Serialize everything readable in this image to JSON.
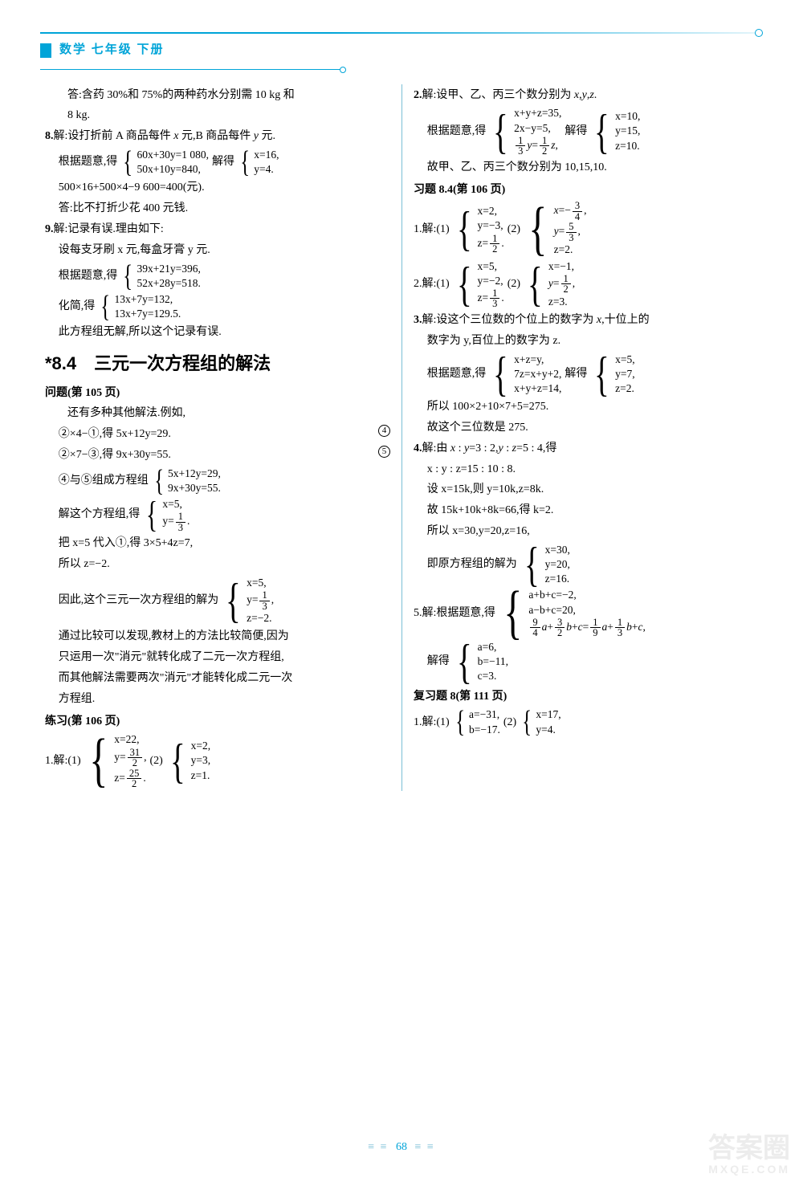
{
  "header": {
    "title": "数学 七年级 下册"
  },
  "page_number": "68",
  "watermark": {
    "big": "答案圈",
    "small": "MXQE.COM"
  },
  "left": {
    "l1": "答:含药 30%和 75%的两种药水分别需 10 kg 和",
    "l2": "8 kg.",
    "p8_a": "8.解:设打折前 A 商品每件 x 元,B 商品每件 y 元.",
    "p8_b_pre": "根据题意,得",
    "p8_sys1": [
      "60x+30y=1 080,",
      "50x+10y=840,"
    ],
    "p8_b_mid": "解得",
    "p8_sys2": [
      "x=16,",
      "y=4."
    ],
    "p8_c": "500×16+500×4−9 600=400(元).",
    "p8_d": "答:比不打折少花 400 元钱.",
    "p9_a": "9.解:记录有误.理由如下:",
    "p9_b": "设每支牙刷 x 元,每盒牙膏 y 元.",
    "p9_c_pre": "根据题意,得",
    "p9_sys1": [
      "39x+21y=396,",
      "52x+28y=518."
    ],
    "p9_d_pre": "化简,得",
    "p9_sys2": [
      "13x+7y=132,",
      "13x+7y=129.5."
    ],
    "p9_e": "此方程组无解,所以这个记录有误.",
    "sec_title": "*8.4　三元一次方程组的解法",
    "q_title": "问题(第 105 页)",
    "q_a": "还有多种其他解法.例如,",
    "q_b": "②×4−①,得 5x+12y=29.",
    "q_b_tag": "④",
    "q_c": "②×7−③,得 9x+30y=55.",
    "q_c_tag": "⑤",
    "q_d_pre": "④与⑤组成方程组",
    "q_sys1": [
      "5x+12y=29,",
      "9x+30y=55."
    ],
    "q_e_pre": "解这个方程组,得",
    "q_sys2_a": "x=5,",
    "q_sys2_b_pre": "y=",
    "q_f": "把 x=5 代入①,得 3×5+4z=7,",
    "q_g": "所以 z=−2.",
    "q_h_pre": "因此,这个三元一次方程组的解为",
    "q_sys3_a": "x=5,",
    "q_sys3_b_pre": "y=",
    "q_sys3_c": "z=−2.",
    "q_i": "通过比较可以发现,教材上的方法比较简便,因为",
    "q_j": "只运用一次\"消元\"就转化成了二元一次方程组,",
    "q_k": "而其他解法需要两次\"消元\"才能转化成二元一次",
    "q_l": "方程组.",
    "ex_title": "练习(第 106 页)",
    "ex1_pre": "1.解:(1)",
    "ex1_sys1_a": "x=22,",
    "ex1_sys1_b_pre": "y=",
    "ex1_sys1_c_pre": "z=",
    "ex1_mid": "(2)",
    "ex1_sys2": [
      "x=2,",
      "y=3,",
      "z=1."
    ]
  },
  "right": {
    "p2_a": "2.解:设甲、乙、丙三个数分别为 x,y,z.",
    "p2_b_pre": "根据题意,得",
    "p2_sys1_a": "x+y+z=35,",
    "p2_sys1_b": "2x−y=5,",
    "p2_mid": "解得",
    "p2_sys2": [
      "x=10,",
      "y=15,",
      "z=10."
    ],
    "p2_c": "故甲、乙、丙三个数分别为 10,15,10.",
    "hw_title": "习题 8.4(第 106 页)",
    "hw1_pre": "1.解:(1)",
    "hw1_sys1_a": "x=2,",
    "hw1_sys1_b": "y=−3,",
    "hw1_sys1_c_pre": "z=",
    "hw1_mid": "(2)",
    "hw1_sys2_c": "z=2.",
    "hw2_pre": "2.解:(1)",
    "hw2_sys1_a": "x=5,",
    "hw2_sys1_b": "y=−2,",
    "hw2_sys1_c_pre": "z=",
    "hw2_mid": "(2)",
    "hw2_sys2_a": "x=−1,",
    "hw2_sys2_c": "z=3.",
    "p3_a": "3.解:设这个三位数的个位上的数字为 x,十位上的",
    "p3_b": "数字为 y,百位上的数字为 z.",
    "p3_c_pre": "根据题意,得",
    "p3_sys1": [
      "x+z=y,",
      "7z=x+y+2,",
      "x+y+z=14,"
    ],
    "p3_mid": "解得",
    "p3_sys2": [
      "x=5,",
      "y=7,",
      "z=2."
    ],
    "p3_d": "所以 100×2+10×7+5=275.",
    "p3_e": "故这个三位数是 275.",
    "p4_a": "4.解:由 x : y=3 : 2,y : z=5 : 4,得",
    "p4_b": "x : y : z=15 : 10 : 8.",
    "p4_c": "设 x=15k,则 y=10k,z=8k.",
    "p4_d": "故 15k+10k+8k=66,得 k=2.",
    "p4_e": "所以 x=30,y=20,z=16,",
    "p4_f_pre": "即原方程组的解为",
    "p4_sys": [
      "x=30,",
      "y=20,",
      "z=16."
    ],
    "p5_a_pre": "5.解:根据题意,得",
    "p5_sys_a": "a+b+c=−2,",
    "p5_sys_b": "a−b+c=20,",
    "p5_b_pre": "解得",
    "p5_sys2": [
      "a=6,",
      "b=−11,",
      "c=3."
    ],
    "rev_title": "复习题 8(第 111 页)",
    "rev1_pre": "1.解:(1)",
    "rev1_sys1": [
      "a=−31,",
      "b=−17."
    ],
    "rev1_mid": "(2)",
    "rev1_sys2": [
      "x=17,",
      "y=4."
    ]
  }
}
